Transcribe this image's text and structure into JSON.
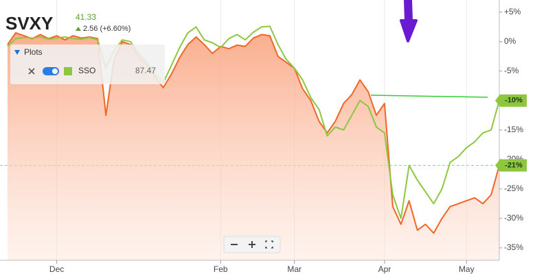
{
  "chart_data": {
    "type": "line",
    "change": "2.56 (+6.60%)",
    "legend_title": "Plots",
    "categories": [
      null,
      null,
      null,
      null,
      null,
      null,
      "Dec",
      null,
      null,
      null,
      null,
      null,
      null,
      null,
      null,
      null,
      null,
      null,
      null,
      null,
      null,
      null,
      null,
      null,
      null,
      null,
      "Feb",
      null,
      null,
      null,
      null,
      null,
      null,
      null,
      null,
      "Mar",
      null,
      null,
      null,
      null,
      null,
      null,
      null,
      null,
      null,
      null,
      "Apr",
      null,
      null,
      null,
      null,
      null,
      null,
      null,
      null,
      null,
      "May",
      null,
      null,
      null,
      null
    ],
    "series": [
      {
        "name": "SVXY",
        "color": "#f26522",
        "last_price": 41.33,
        "end_label": "-21%",
        "values": [
          -0.5,
          1.5,
          1.0,
          0.5,
          1.2,
          0.5,
          1.0,
          0.3,
          1.0,
          0.6,
          0.8,
          0.5,
          -12.5,
          -3.0,
          0.0,
          -0.5,
          -2.5,
          -4.0,
          -6.0,
          -7.8,
          -5.5,
          -2.7,
          -0.5,
          0.8,
          -0.5,
          -2.0,
          -0.8,
          -1.2,
          -0.6,
          -0.8,
          0.6,
          1.2,
          1.0,
          -2.5,
          -3.5,
          -4.5,
          -8.0,
          -10.0,
          -13.5,
          -15.5,
          -13.5,
          -10.5,
          -9.0,
          -6.5,
          -8.5,
          -12.5,
          -10.5,
          -28.0,
          -31.0,
          -27.0,
          -32.0,
          -31.0,
          -32.5,
          -30.0,
          -28.0,
          -27.5,
          -27.0,
          -26.5,
          -27.5,
          -26.0,
          -21.0
        ]
      },
      {
        "name": "SSO",
        "color": "#8dc63f",
        "last_price": 87.47,
        "end_label": "-10%",
        "values": [
          -0.8,
          0.5,
          0.7,
          0.6,
          0.8,
          0.4,
          0.6,
          0.8,
          0.5,
          0.4,
          0.7,
          0.3,
          -4.5,
          -1.5,
          0.3,
          0.0,
          -2.0,
          -3.5,
          -5.5,
          -7.0,
          -4.0,
          -1.0,
          1.5,
          2.5,
          0.3,
          -0.2,
          -1.0,
          0.5,
          1.2,
          0.3,
          1.6,
          2.5,
          2.6,
          -0.5,
          -3.0,
          -4.5,
          -6.5,
          -9.5,
          -11.5,
          -16.0,
          -14.5,
          -15.0,
          -12.5,
          -10.0,
          -11.0,
          -14.5,
          -15.5,
          -26.0,
          -30.0,
          -21.0,
          -23.5,
          -25.5,
          -27.5,
          -25.0,
          -20.5,
          -19.5,
          -18.0,
          -17.0,
          -15.5,
          -15.0,
          -10.0
        ]
      }
    ],
    "ylim": [
      -37.1,
      5.9
    ],
    "yticks": [
      {
        "value": 5,
        "label": "+5%"
      },
      {
        "value": 0,
        "label": "0%"
      },
      {
        "value": -5,
        "label": "-5%"
      },
      {
        "value": -10,
        "label": "-10%"
      },
      {
        "value": -15,
        "label": "-15%"
      },
      {
        "value": -20,
        "label": "-20%"
      },
      {
        "value": -25,
        "label": "-25%"
      },
      {
        "value": -30,
        "label": "-30%"
      },
      {
        "value": -35,
        "label": "-35%"
      }
    ]
  }
}
